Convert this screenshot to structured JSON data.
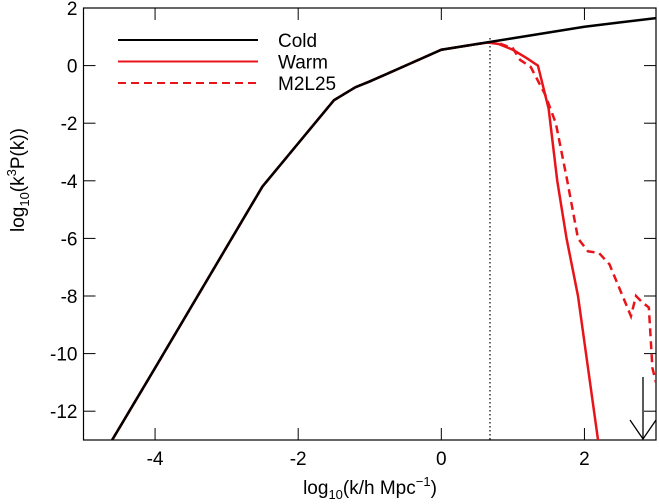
{
  "chart_data": {
    "type": "line",
    "xlabel": {
      "base": "log",
      "sub": "10",
      "main": "(k/h Mpc",
      "sup": "−1",
      "end": ")"
    },
    "ylabel": {
      "base": "log",
      "sub": "10",
      "main": "(k",
      "sup": "3",
      "end": "P(k))"
    },
    "xlim": [
      -5,
      3
    ],
    "ylim": [
      -13,
      2
    ],
    "xticks": [
      -4,
      -2,
      0,
      2
    ],
    "yticks": [
      -12,
      -10,
      -8,
      -6,
      -4,
      -2,
      0,
      2
    ],
    "legend": "upper left",
    "series": [
      {
        "name": "Cold",
        "color": "#000000",
        "dash": false,
        "x": [
          -4.6,
          -4,
          -3.5,
          -3,
          -2.5,
          -2,
          -1.5,
          -1.2,
          -1,
          -0.5,
          0,
          0.5,
          1,
          1.5,
          2,
          2.5,
          3
        ],
        "values": [
          -13,
          -10.5,
          -8.4,
          -6.3,
          -4.2,
          -2.7,
          -1.2,
          -0.75,
          -0.55,
          0,
          0.55,
          0.75,
          0.95,
          1.15,
          1.35,
          1.5,
          1.65
        ]
      },
      {
        "name": "Warm",
        "color": "#e8141a",
        "dash": false,
        "x": [
          -4.6,
          -4,
          -3.5,
          -3,
          -2.5,
          -2,
          -1.5,
          -1.2,
          -1,
          -0.5,
          0,
          0.5,
          0.65,
          0.8,
          1,
          1.2,
          1.35,
          1.5,
          1.62,
          1.75,
          1.91,
          2.05,
          2.19
        ],
        "values": [
          -13,
          -10.5,
          -8.4,
          -6.3,
          -4.2,
          -2.7,
          -1.2,
          -0.75,
          -0.55,
          0,
          0.55,
          0.75,
          0.8,
          0.75,
          0.55,
          0.25,
          0,
          -1.5,
          -4,
          -6,
          -8,
          -10.5,
          -13
        ]
      },
      {
        "name": "M2L25",
        "color": "#e8141a",
        "dash": true,
        "x": [
          -4.6,
          -4,
          -3.5,
          -3,
          -2.5,
          -2,
          -1.5,
          -1.2,
          -1,
          -0.5,
          0,
          0.5,
          0.65,
          0.8,
          1,
          1.1,
          1.25,
          1.45,
          1.6,
          1.76,
          1.91,
          2.05,
          2.2,
          2.35,
          2.5,
          2.65,
          2.72,
          2.8,
          2.9,
          2.95,
          3
        ],
        "values": [
          -13,
          -10.5,
          -8.4,
          -6.3,
          -4.2,
          -2.7,
          -1.2,
          -0.75,
          -0.55,
          0,
          0.55,
          0.75,
          0.8,
          0.78,
          0.6,
          0.2,
          -0.05,
          -1,
          -2,
          -4,
          -6,
          -6.45,
          -6.5,
          -6.9,
          -7.8,
          -8.7,
          -8,
          -8.2,
          -8.4,
          -10.5,
          -11
        ]
      }
    ]
  }
}
